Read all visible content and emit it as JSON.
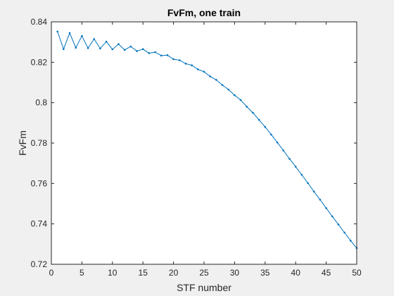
{
  "chart_data": {
    "type": "line",
    "title": "FvFm, one train",
    "xlabel": "STF number",
    "ylabel": "FvFm",
    "xlim": [
      0,
      50
    ],
    "ylim": [
      0.72,
      0.84
    ],
    "xticks": [
      0,
      5,
      10,
      15,
      20,
      25,
      30,
      35,
      40,
      45,
      50
    ],
    "yticks": [
      0.72,
      0.74,
      0.76,
      0.78,
      0.8,
      0.82,
      0.84
    ],
    "ytick_labels": [
      "0.72",
      "0.74",
      "0.76",
      "0.78",
      "0.8",
      "0.82",
      "0.84"
    ],
    "grid": false,
    "line_color": "#0072BD",
    "marker": "dot",
    "series": [
      {
        "x": [
          1,
          2,
          3,
          4,
          5,
          6,
          7,
          8,
          9,
          10,
          11,
          12,
          13,
          14,
          15,
          16,
          17,
          18,
          19,
          20,
          21,
          22,
          23,
          24,
          25,
          26,
          27,
          28,
          29,
          30,
          31,
          32,
          33,
          34,
          35,
          36,
          37,
          38,
          39,
          40,
          41,
          42,
          43,
          44,
          45,
          46,
          47,
          48,
          49,
          50
        ],
        "y": [
          0.8352,
          0.8265,
          0.8345,
          0.8272,
          0.833,
          0.827,
          0.8315,
          0.8268,
          0.8302,
          0.8264,
          0.829,
          0.8261,
          0.8278,
          0.8255,
          0.8265,
          0.8245,
          0.825,
          0.8233,
          0.8235,
          0.8215,
          0.821,
          0.8193,
          0.8185,
          0.8165,
          0.8153,
          0.813,
          0.8113,
          0.8087,
          0.8065,
          0.8037,
          0.8013,
          0.798,
          0.795,
          0.7915,
          0.788,
          0.7842,
          0.7803,
          0.7763,
          0.7722,
          0.7683,
          0.7643,
          0.7602,
          0.756,
          0.752,
          0.7478,
          0.7437,
          0.7397,
          0.7357,
          0.7317,
          0.728
        ]
      }
    ]
  }
}
